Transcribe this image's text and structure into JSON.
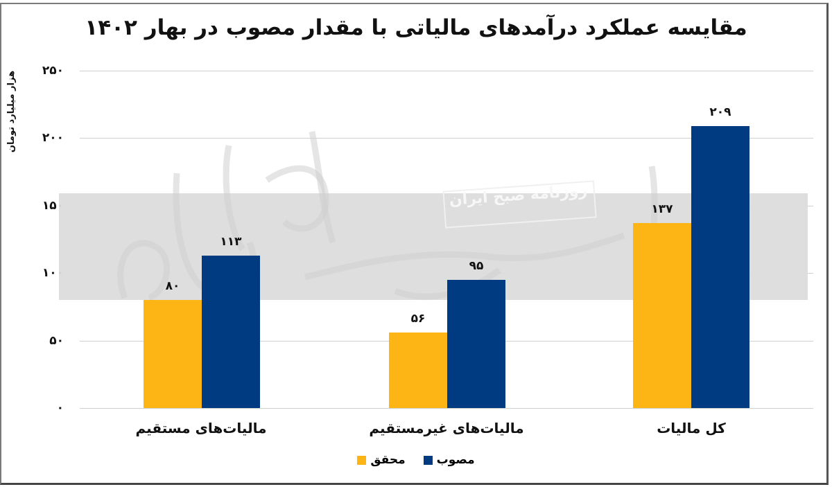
{
  "title": "مقایسه عملکرد درآمدهای مالیاتی با مقدار مصوب در بهار ۱۴۰۲",
  "y_axis_label": "هزار میلیارد تومان",
  "y_ticks": [
    {
      "value": 250,
      "label": "۲۵۰"
    },
    {
      "value": 200,
      "label": "۲۰۰"
    },
    {
      "value": 150,
      "label": "۱۵۰"
    },
    {
      "value": 100,
      "label": "۱۰۰"
    },
    {
      "value": 50,
      "label": "۵۰"
    },
    {
      "value": 0,
      "label": "۰"
    }
  ],
  "categories": [
    {
      "label": "مالیات‌های مستقیم",
      "actual": 80,
      "actual_label": "۸۰",
      "approved": 113,
      "approved_label": "۱۱۳"
    },
    {
      "label": "مالیات‌های غیرمستقیم",
      "actual": 56,
      "actual_label": "۵۶",
      "approved": 95,
      "approved_label": "۹۵"
    },
    {
      "label": "کل مالیات",
      "actual": 137,
      "actual_label": "۱۳۷",
      "approved": 209,
      "approved_label": "۲۰۹"
    }
  ],
  "legend": {
    "approved": {
      "label": "مصوب",
      "color": "#003a80"
    },
    "actual": {
      "label": "محقق",
      "color": "#fdb515"
    }
  },
  "watermark": {
    "text": "روزنامه صبح ایران"
  },
  "chart_data": {
    "type": "bar",
    "title": "مقایسه عملکرد درآمدهای مالیاتی با مقدار مصوب در بهار ۱۴۰۲",
    "xlabel": "",
    "ylabel": "هزار میلیارد تومان",
    "categories": [
      "مالیات‌های مستقیم",
      "مالیات‌های غیرمستقیم",
      "کل مالیات"
    ],
    "series": [
      {
        "name": "محقق",
        "color": "#fdb515",
        "values": [
          80,
          56,
          137
        ]
      },
      {
        "name": "مصوب",
        "color": "#003a80",
        "values": [
          113,
          95,
          209
        ]
      }
    ],
    "ylim": [
      0,
      250
    ],
    "yticks": [
      0,
      50,
      100,
      150,
      200,
      250
    ],
    "grid": true,
    "legend_position": "bottom",
    "data_labels": true
  }
}
